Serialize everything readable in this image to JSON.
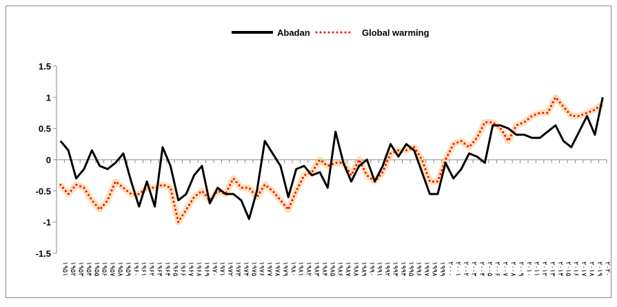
{
  "chart_data": {
    "type": "line",
    "categories": [
      "۱۹۵۱",
      "۱۹۵۲",
      "۱۹۵۳",
      "۱۹۵۴",
      "۱۹۵۵",
      "۱۹۵۶",
      "۱۹۵۷",
      "۱۹۵۸",
      "۱۹۵۹",
      "۱۹۶۰",
      "۱۹۶۱",
      "۱۹۶۲",
      "۱۹۶۳",
      "۱۹۶۴",
      "۱۹۶۵",
      "۱۹۶۶",
      "۱۹۶۷",
      "۱۹۶۸",
      "۱۹۶۹",
      "۱۹۷۰",
      "۱۹۷۱",
      "۱۹۷۲",
      "۱۹۷۳",
      "۱۹۷۴",
      "۱۹۷۵",
      "۱۹۷۶",
      "۱۹۷۷",
      "۱۹۷۸",
      "۱۹۷۹",
      "۱۹۸۰",
      "۱۹۸۱",
      "۱۹۸۲",
      "۱۹۸۳",
      "۱۹۸۴",
      "۱۹۸۵",
      "۱۹۸۶",
      "۱۹۸۷",
      "۱۹۸۸",
      "۱۹۸۹",
      "۱۹۹۰",
      "۱۹۹۱",
      "۱۹۹۲",
      "۱۹۹۳",
      "۱۹۹۴",
      "۱۹۹۵",
      "۱۹۹۶",
      "۱۹۹۷",
      "۱۹۹۸",
      "۱۹۹۹",
      "۲۰۰۰",
      "۲۰۰۱",
      "۲۰۰۲",
      "۲۰۰۳",
      "۲۰۰۴",
      "۲۰۰۵",
      "۲۰۰۶",
      "۲۰۰۷",
      "۲۰۰۸",
      "۲۰۰۹",
      "۲۰۱۰",
      "۲۰۱۱",
      "۲۰۱۲",
      "۲۰۱۳",
      "۲۰۱۴",
      "۲۰۱۵",
      "۲۰۱۶",
      "۲۰۱۷",
      "۲۰۱۸",
      "۲۰۱۹",
      "۲۰۲۰"
    ],
    "series": [
      {
        "name": "Abadan",
        "color": "#000000",
        "style": "solid",
        "values": [
          0.3,
          0.15,
          -0.3,
          -0.15,
          0.15,
          -0.1,
          -0.15,
          -0.05,
          0.1,
          -0.35,
          -0.75,
          -0.35,
          -0.75,
          0.2,
          -0.1,
          -0.65,
          -0.55,
          -0.25,
          -0.1,
          -0.7,
          -0.45,
          -0.55,
          -0.55,
          -0.65,
          -0.95,
          -0.5,
          0.3,
          0.1,
          -0.1,
          -0.6,
          -0.15,
          -0.1,
          -0.25,
          -0.2,
          -0.45,
          0.45,
          -0.05,
          -0.35,
          -0.1,
          0.0,
          -0.35,
          -0.1,
          0.25,
          0.05,
          0.25,
          0.15,
          -0.2,
          -0.55,
          -0.55,
          -0.05,
          -0.3,
          -0.15,
          0.1,
          0.05,
          -0.05,
          0.55,
          0.55,
          0.5,
          0.4,
          0.4,
          0.35,
          0.35,
          0.45,
          0.55,
          0.3,
          0.2,
          0.45,
          0.7,
          0.4,
          1.0
        ]
      },
      {
        "name": "Global warming",
        "color": "#ff0000",
        "style": "dotted",
        "values": [
          -0.4,
          -0.55,
          -0.4,
          -0.45,
          -0.65,
          -0.8,
          -0.65,
          -0.35,
          -0.45,
          -0.55,
          -0.55,
          -0.45,
          -0.45,
          -0.4,
          -0.45,
          -1.0,
          -0.8,
          -0.6,
          -0.5,
          -0.65,
          -0.5,
          -0.55,
          -0.3,
          -0.45,
          -0.45,
          -0.6,
          -0.4,
          -0.5,
          -0.65,
          -0.8,
          -0.5,
          -0.25,
          -0.2,
          0.0,
          -0.1,
          -0.05,
          -0.05,
          -0.25,
          0.0,
          -0.25,
          -0.35,
          -0.2,
          0.1,
          0.15,
          0.15,
          0.2,
          0.0,
          -0.35,
          -0.35,
          0.0,
          0.25,
          0.3,
          0.2,
          0.35,
          0.6,
          0.6,
          0.5,
          0.3,
          0.55,
          0.6,
          0.7,
          0.75,
          0.75,
          1.0,
          0.85,
          0.7,
          0.7,
          0.75,
          0.8,
          0.9
        ]
      }
    ],
    "ylim": [
      -1.5,
      1.5
    ],
    "yticks": [
      -1.5,
      -1,
      -0.5,
      0,
      0.5,
      1,
      1.5
    ],
    "legend": "top"
  }
}
